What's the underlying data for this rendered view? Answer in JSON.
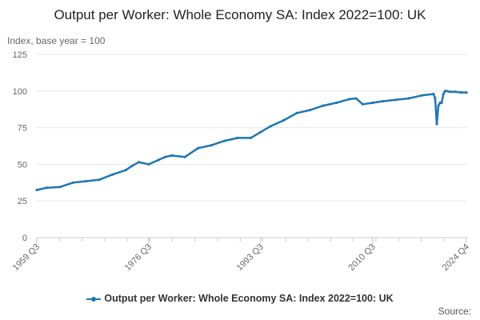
{
  "chart_data": {
    "type": "line",
    "title": "Output per Worker: Whole Economy SA: Index 2022=100: UK",
    "ylabel": "Index, base year = 100",
    "ylim": [
      0,
      125
    ],
    "yticks": [
      0,
      25,
      50,
      75,
      100,
      125
    ],
    "xticks": [
      "1959 Q3",
      "1976 Q3",
      "1993 Q3",
      "2010 Q3",
      "2024 Q4"
    ],
    "grid": true,
    "legend_position": "bottom",
    "series": [
      {
        "name": "Output per Worker: Whole Economy SA: Index 2022=100: UK",
        "color": "#1f77b4",
        "x": [
          "1959 Q3",
          "1961 Q1",
          "1963 Q1",
          "1965 Q1",
          "1967 Q1",
          "1969 Q1",
          "1971 Q1",
          "1973 Q1",
          "1974 Q1",
          "1975 Q1",
          "1976 Q3",
          "1978 Q1",
          "1979 Q1",
          "1980 Q1",
          "1982 Q1",
          "1984 Q1",
          "1986 Q1",
          "1988 Q1",
          "1990 Q1",
          "1992 Q1",
          "1993 Q3",
          "1995 Q1",
          "1997 Q1",
          "1999 Q1",
          "2001 Q1",
          "2003 Q1",
          "2005 Q1",
          "2007 Q1",
          "2008 Q1",
          "2009 Q1",
          "2010 Q3",
          "2012 Q1",
          "2014 Q1",
          "2016 Q1",
          "2018 Q1",
          "2019 Q4",
          "2020 Q1",
          "2020 Q2",
          "2020 Q3",
          "2020 Q4",
          "2021 Q1",
          "2021 Q2",
          "2021 Q3",
          "2021 Q4",
          "2022 Q2",
          "2023 Q1",
          "2024 Q1",
          "2024 Q4"
        ],
        "values": [
          32.5,
          34,
          34.5,
          37.5,
          38.5,
          39.5,
          43,
          46,
          49,
          51.5,
          50,
          53,
          55,
          56,
          55,
          61,
          63,
          66,
          68,
          68,
          72,
          76,
          80,
          85,
          87,
          90,
          92,
          94.5,
          95,
          91,
          92,
          93,
          94,
          95,
          97,
          98,
          95,
          77.5,
          90,
          92,
          92,
          98,
          100,
          100,
          99.5,
          99.5,
          99,
          99
        ]
      }
    ]
  },
  "source_label": "Source:"
}
